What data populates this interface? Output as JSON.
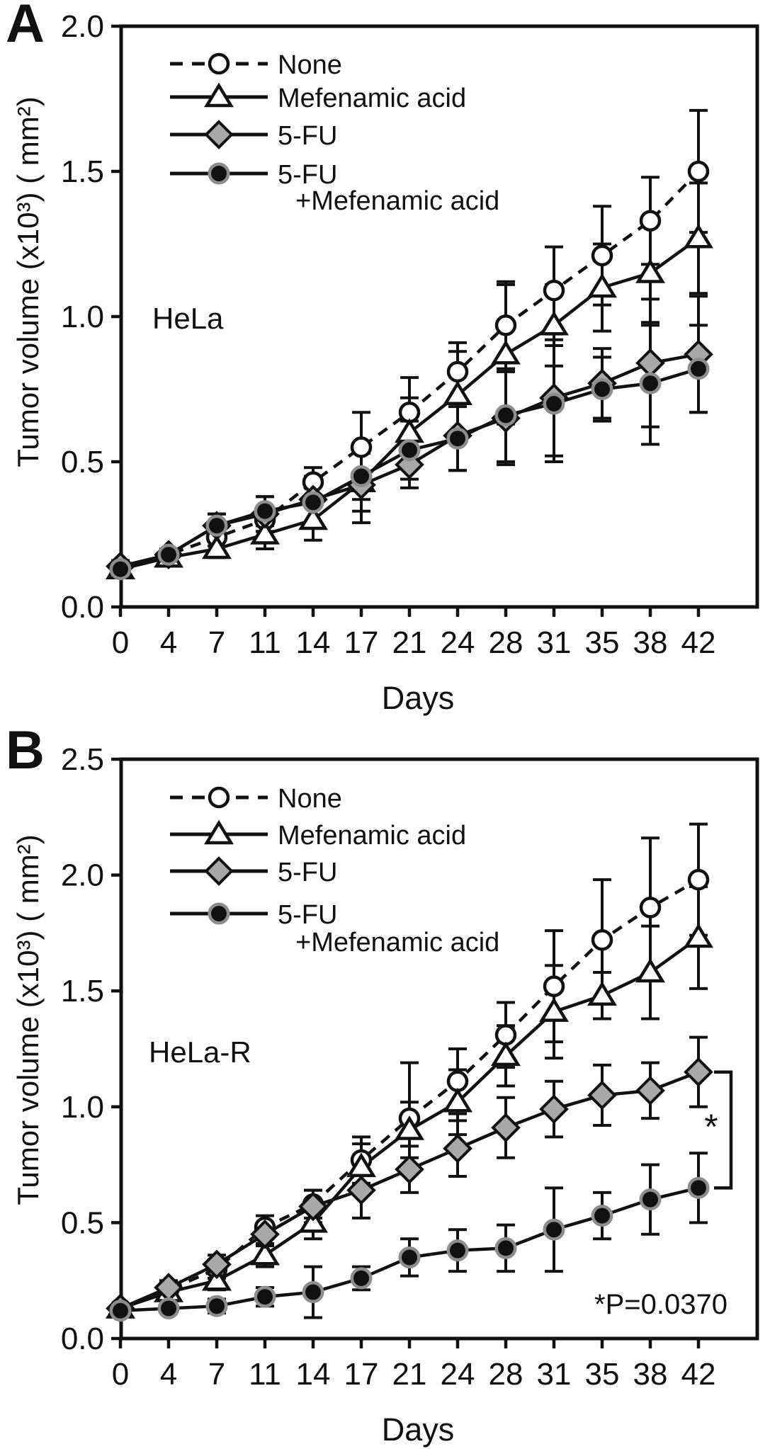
{
  "colors": {
    "ink": "#111111",
    "open_marker_fill": "#ffffff",
    "diamond_fill": "#a8a8a8",
    "circle_halo": "#8d8d8d",
    "background": "#ffffff"
  },
  "chart_data": [
    {
      "type": "line",
      "panel": "A",
      "cell_line": "HeLa",
      "xlabel": "Days",
      "ylabel": "Tumor volume (x10³) ( mm²)",
      "x_categories": [
        0,
        4,
        7,
        11,
        14,
        17,
        21,
        24,
        28,
        31,
        35,
        38,
        42
      ],
      "ylim": [
        0.0,
        2.0
      ],
      "yticks": [
        0.0,
        0.5,
        1.0,
        1.5,
        2.0
      ],
      "grid": false,
      "legend_position": "top-inside",
      "series": [
        {
          "name": "None",
          "marker": "open-circle",
          "line_style": "dashed",
          "values": [
            0.13,
            0.18,
            0.24,
            0.3,
            0.43,
            0.55,
            0.67,
            0.81,
            0.97,
            1.09,
            1.21,
            1.33,
            1.5
          ],
          "errors": [
            0.02,
            0.02,
            0.03,
            0.04,
            0.05,
            0.12,
            0.12,
            0.1,
            0.15,
            0.15,
            0.17,
            0.15,
            0.21
          ]
        },
        {
          "name": "Mefenamic acid",
          "marker": "open-triangle",
          "line_style": "solid",
          "values": [
            0.13,
            0.17,
            0.2,
            0.25,
            0.3,
            0.43,
            0.6,
            0.73,
            0.87,
            0.97,
            1.1,
            1.15,
            1.27
          ],
          "errors": [
            0.02,
            0.02,
            0.03,
            0.05,
            0.07,
            0.1,
            0.12,
            0.15,
            0.24,
            0.14,
            0.15,
            0.18,
            0.19
          ]
        },
        {
          "name": "5-FU",
          "marker": "gray-diamond",
          "line_style": "solid",
          "values": [
            0.14,
            0.18,
            0.28,
            0.32,
            0.37,
            0.42,
            0.49,
            0.59,
            0.65,
            0.72,
            0.77,
            0.84,
            0.87
          ],
          "errors": [
            0.02,
            0.02,
            0.04,
            0.06,
            0.08,
            0.13,
            0.08,
            0.12,
            0.16,
            0.2,
            0.12,
            0.22,
            0.2
          ]
        },
        {
          "name": "5-FU +Mefenamic acid",
          "legend_lines": [
            "5-FU",
            "+Mefenamic acid"
          ],
          "marker": "filled-circle",
          "line_style": "solid",
          "values": [
            0.13,
            0.18,
            0.28,
            0.33,
            0.36,
            0.45,
            0.54,
            0.58,
            0.66,
            0.7,
            0.75,
            0.77,
            0.82
          ],
          "errors": [
            0.02,
            0.02,
            0.04,
            0.05,
            0.07,
            0.08,
            0.1,
            0.11,
            0.16,
            0.2,
            0.11,
            0.21,
            0.15
          ]
        }
      ]
    },
    {
      "type": "line",
      "panel": "B",
      "cell_line": "HeLa-R",
      "xlabel": "Days",
      "ylabel": "Tumor volume (x10³) ( mm²)",
      "x_categories": [
        0,
        4,
        7,
        11,
        14,
        17,
        21,
        24,
        28,
        31,
        35,
        38,
        42
      ],
      "ylim": [
        0.0,
        2.5
      ],
      "yticks": [
        0.0,
        0.5,
        1.0,
        1.5,
        2.0,
        2.5
      ],
      "grid": false,
      "legend_position": "top-inside",
      "series": [
        {
          "name": "None",
          "marker": "open-circle",
          "line_style": "dashed",
          "values": [
            0.13,
            0.21,
            0.3,
            0.48,
            0.58,
            0.77,
            0.95,
            1.11,
            1.31,
            1.52,
            1.72,
            1.86,
            1.98
          ],
          "errors": [
            0.02,
            0.03,
            0.04,
            0.05,
            0.06,
            0.1,
            0.24,
            0.14,
            0.14,
            0.24,
            0.26,
            0.3,
            0.24
          ]
        },
        {
          "name": "Mefenamic acid",
          "marker": "open-triangle",
          "line_style": "solid",
          "values": [
            0.13,
            0.2,
            0.25,
            0.36,
            0.5,
            0.74,
            0.9,
            1.02,
            1.22,
            1.41,
            1.48,
            1.58,
            1.73
          ],
          "errors": [
            0.02,
            0.03,
            0.04,
            0.05,
            0.07,
            0.1,
            0.12,
            0.14,
            0.13,
            0.2,
            0.1,
            0.2,
            0.22
          ]
        },
        {
          "name": "5-FU",
          "marker": "gray-diamond",
          "line_style": "solid",
          "values": [
            0.13,
            0.22,
            0.32,
            0.45,
            0.57,
            0.64,
            0.73,
            0.82,
            0.91,
            0.99,
            1.05,
            1.07,
            1.15
          ],
          "errors": [
            0.02,
            0.03,
            0.04,
            0.05,
            0.07,
            0.12,
            0.1,
            0.12,
            0.13,
            0.12,
            0.13,
            0.12,
            0.15
          ]
        },
        {
          "name": "5-FU +Mefenamic acid",
          "legend_lines": [
            "5-FU",
            "+Mefenamic acid"
          ],
          "marker": "filled-circle",
          "line_style": "solid",
          "values": [
            0.12,
            0.13,
            0.14,
            0.18,
            0.2,
            0.26,
            0.35,
            0.38,
            0.39,
            0.47,
            0.53,
            0.6,
            0.65
          ],
          "errors": [
            0.02,
            0.02,
            0.03,
            0.04,
            0.11,
            0.05,
            0.08,
            0.09,
            0.1,
            0.18,
            0.1,
            0.15,
            0.15
          ]
        }
      ],
      "annotation": {
        "text": "*P=0.0370",
        "star": "*",
        "bracket": {
          "between": [
            "5-FU",
            "5-FU +Mefenamic acid"
          ],
          "at_day": 42
        }
      }
    }
  ]
}
